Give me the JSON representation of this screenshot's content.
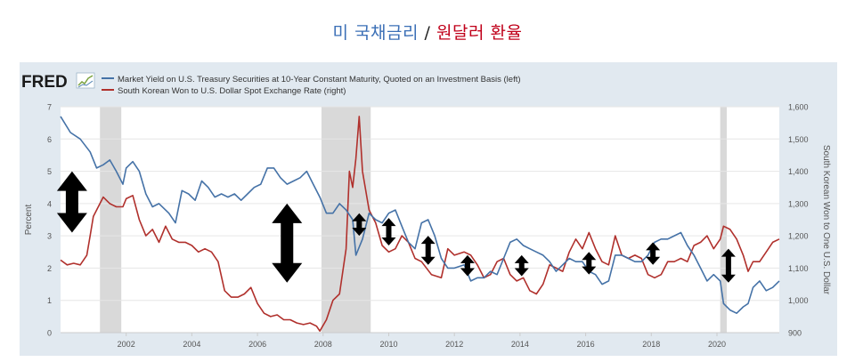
{
  "page_title": {
    "part1": "미 국채금리",
    "separator": "/",
    "part2": "원달러 환율"
  },
  "colors": {
    "title_blue": "#3b6fb6",
    "title_red": "#c0001a",
    "panel_bg": "#e1e9f0",
    "series1": "#4572a7",
    "series2": "#b0302c",
    "recession": "#d9d9d9",
    "arrow": "#000000"
  },
  "fred_logo": {
    "text": "FRED"
  },
  "legend": [
    {
      "label": "Market Yield on U.S. Treasury Securities at 10-Year Constant Maturity, Quoted on an Investment Basis (left)"
    },
    {
      "label": "South Korean Won to U.S. Dollar Spot Exchange Rate (right)"
    }
  ],
  "chart_data": {
    "type": "line",
    "left_axis": {
      "label": "Percent",
      "range": [
        0,
        7
      ],
      "ticks": [
        "0",
        "1",
        "2",
        "3",
        "4",
        "5",
        "6",
        "7"
      ]
    },
    "right_axis": {
      "label": "South Korean Won to One U.S. Dollar",
      "range": [
        900,
        1600
      ],
      "ticks": [
        "900",
        "1,000",
        "1,100",
        "1,200",
        "1,300",
        "1,400",
        "1,500",
        "1,600"
      ]
    },
    "x_axis": {
      "range": [
        2000.0,
        2021.9
      ],
      "ticks": [
        "2002",
        "2004",
        "2006",
        "2008",
        "2010",
        "2012",
        "2014",
        "2016",
        "2018",
        "2020"
      ]
    },
    "grid": "horizontal",
    "legend_position": "top-left",
    "recessions": [
      [
        2001.2,
        2001.85
      ],
      [
        2007.95,
        2009.45
      ],
      [
        2020.1,
        2020.3
      ]
    ],
    "series": [
      {
        "name": "Market Yield on U.S. Treasury Securities at 10-Year Constant Maturity, Quoted on an Investment Basis (left)",
        "axis": "left",
        "points": [
          [
            2000.0,
            6.7
          ],
          [
            2000.3,
            6.2
          ],
          [
            2000.6,
            6.0
          ],
          [
            2000.9,
            5.6
          ],
          [
            2001.1,
            5.1
          ],
          [
            2001.3,
            5.2
          ],
          [
            2001.5,
            5.35
          ],
          [
            2001.7,
            5.0
          ],
          [
            2001.9,
            4.6
          ],
          [
            2002.0,
            5.1
          ],
          [
            2002.2,
            5.3
          ],
          [
            2002.4,
            5.0
          ],
          [
            2002.6,
            4.3
          ],
          [
            2002.8,
            3.9
          ],
          [
            2003.0,
            4.0
          ],
          [
            2003.3,
            3.7
          ],
          [
            2003.5,
            3.4
          ],
          [
            2003.7,
            4.4
          ],
          [
            2003.9,
            4.3
          ],
          [
            2004.1,
            4.1
          ],
          [
            2004.3,
            4.7
          ],
          [
            2004.5,
            4.5
          ],
          [
            2004.7,
            4.2
          ],
          [
            2004.9,
            4.3
          ],
          [
            2005.1,
            4.2
          ],
          [
            2005.3,
            4.3
          ],
          [
            2005.5,
            4.1
          ],
          [
            2005.7,
            4.3
          ],
          [
            2005.9,
            4.5
          ],
          [
            2006.1,
            4.6
          ],
          [
            2006.3,
            5.1
          ],
          [
            2006.5,
            5.1
          ],
          [
            2006.7,
            4.8
          ],
          [
            2006.9,
            4.6
          ],
          [
            2007.1,
            4.7
          ],
          [
            2007.3,
            4.8
          ],
          [
            2007.5,
            5.0
          ],
          [
            2007.7,
            4.6
          ],
          [
            2007.9,
            4.2
          ],
          [
            2008.1,
            3.7
          ],
          [
            2008.3,
            3.7
          ],
          [
            2008.5,
            4.0
          ],
          [
            2008.7,
            3.8
          ],
          [
            2008.9,
            3.5
          ],
          [
            2009.0,
            2.4
          ],
          [
            2009.2,
            2.9
          ],
          [
            2009.4,
            3.7
          ],
          [
            2009.6,
            3.5
          ],
          [
            2009.8,
            3.4
          ],
          [
            2010.0,
            3.7
          ],
          [
            2010.2,
            3.8
          ],
          [
            2010.4,
            3.3
          ],
          [
            2010.6,
            2.8
          ],
          [
            2010.8,
            2.6
          ],
          [
            2011.0,
            3.4
          ],
          [
            2011.2,
            3.5
          ],
          [
            2011.4,
            3.0
          ],
          [
            2011.6,
            2.3
          ],
          [
            2011.8,
            2.0
          ],
          [
            2012.0,
            2.0
          ],
          [
            2012.3,
            2.1
          ],
          [
            2012.5,
            1.6
          ],
          [
            2012.7,
            1.7
          ],
          [
            2012.9,
            1.7
          ],
          [
            2013.1,
            1.9
          ],
          [
            2013.3,
            1.8
          ],
          [
            2013.5,
            2.3
          ],
          [
            2013.7,
            2.8
          ],
          [
            2013.9,
            2.9
          ],
          [
            2014.1,
            2.7
          ],
          [
            2014.3,
            2.6
          ],
          [
            2014.5,
            2.5
          ],
          [
            2014.7,
            2.4
          ],
          [
            2014.9,
            2.2
          ],
          [
            2015.1,
            1.9
          ],
          [
            2015.3,
            2.1
          ],
          [
            2015.5,
            2.3
          ],
          [
            2015.7,
            2.2
          ],
          [
            2015.9,
            2.2
          ],
          [
            2016.1,
            1.9
          ],
          [
            2016.3,
            1.8
          ],
          [
            2016.5,
            1.5
          ],
          [
            2016.7,
            1.6
          ],
          [
            2016.9,
            2.4
          ],
          [
            2017.1,
            2.4
          ],
          [
            2017.3,
            2.3
          ],
          [
            2017.5,
            2.2
          ],
          [
            2017.7,
            2.2
          ],
          [
            2017.9,
            2.4
          ],
          [
            2018.1,
            2.8
          ],
          [
            2018.3,
            2.9
          ],
          [
            2018.5,
            2.9
          ],
          [
            2018.7,
            3.0
          ],
          [
            2018.9,
            3.1
          ],
          [
            2019.1,
            2.7
          ],
          [
            2019.3,
            2.4
          ],
          [
            2019.5,
            2.0
          ],
          [
            2019.7,
            1.6
          ],
          [
            2019.9,
            1.8
          ],
          [
            2020.1,
            1.6
          ],
          [
            2020.2,
            0.9
          ],
          [
            2020.4,
            0.7
          ],
          [
            2020.6,
            0.6
          ],
          [
            2020.8,
            0.8
          ],
          [
            2020.95,
            0.9
          ],
          [
            2021.1,
            1.4
          ],
          [
            2021.3,
            1.6
          ],
          [
            2021.5,
            1.3
          ],
          [
            2021.7,
            1.4
          ],
          [
            2021.9,
            1.6
          ]
        ]
      },
      {
        "name": "South Korean Won to U.S. Dollar Spot Exchange Rate (right)",
        "axis": "right",
        "points": [
          [
            2000.0,
            1125
          ],
          [
            2000.2,
            1110
          ],
          [
            2000.4,
            1115
          ],
          [
            2000.6,
            1110
          ],
          [
            2000.8,
            1140
          ],
          [
            2000.9,
            1200
          ],
          [
            2001.0,
            1260
          ],
          [
            2001.2,
            1300
          ],
          [
            2001.3,
            1320
          ],
          [
            2001.5,
            1300
          ],
          [
            2001.7,
            1290
          ],
          [
            2001.9,
            1290
          ],
          [
            2002.0,
            1315
          ],
          [
            2002.2,
            1325
          ],
          [
            2002.4,
            1250
          ],
          [
            2002.6,
            1200
          ],
          [
            2002.8,
            1220
          ],
          [
            2003.0,
            1180
          ],
          [
            2003.2,
            1230
          ],
          [
            2003.4,
            1190
          ],
          [
            2003.6,
            1180
          ],
          [
            2003.8,
            1180
          ],
          [
            2004.0,
            1170
          ],
          [
            2004.2,
            1150
          ],
          [
            2004.4,
            1160
          ],
          [
            2004.6,
            1150
          ],
          [
            2004.8,
            1120
          ],
          [
            2005.0,
            1030
          ],
          [
            2005.2,
            1010
          ],
          [
            2005.4,
            1010
          ],
          [
            2005.6,
            1020
          ],
          [
            2005.8,
            1040
          ],
          [
            2006.0,
            990
          ],
          [
            2006.2,
            960
          ],
          [
            2006.4,
            950
          ],
          [
            2006.6,
            955
          ],
          [
            2006.8,
            940
          ],
          [
            2007.0,
            940
          ],
          [
            2007.2,
            930
          ],
          [
            2007.4,
            925
          ],
          [
            2007.6,
            930
          ],
          [
            2007.8,
            920
          ],
          [
            2007.9,
            905
          ],
          [
            2008.1,
            940
          ],
          [
            2008.3,
            1000
          ],
          [
            2008.5,
            1020
          ],
          [
            2008.7,
            1160
          ],
          [
            2008.8,
            1400
          ],
          [
            2008.9,
            1350
          ],
          [
            2009.0,
            1440
          ],
          [
            2009.1,
            1570
          ],
          [
            2009.2,
            1400
          ],
          [
            2009.4,
            1280
          ],
          [
            2009.6,
            1240
          ],
          [
            2009.8,
            1170
          ],
          [
            2010.0,
            1150
          ],
          [
            2010.2,
            1160
          ],
          [
            2010.4,
            1200
          ],
          [
            2010.6,
            1180
          ],
          [
            2010.8,
            1130
          ],
          [
            2011.0,
            1120
          ],
          [
            2011.3,
            1080
          ],
          [
            2011.6,
            1070
          ],
          [
            2011.8,
            1160
          ],
          [
            2012.0,
            1140
          ],
          [
            2012.3,
            1150
          ],
          [
            2012.5,
            1140
          ],
          [
            2012.7,
            1110
          ],
          [
            2012.9,
            1070
          ],
          [
            2013.1,
            1080
          ],
          [
            2013.3,
            1120
          ],
          [
            2013.5,
            1130
          ],
          [
            2013.7,
            1080
          ],
          [
            2013.9,
            1060
          ],
          [
            2014.1,
            1070
          ],
          [
            2014.3,
            1030
          ],
          [
            2014.5,
            1020
          ],
          [
            2014.7,
            1050
          ],
          [
            2014.9,
            1110
          ],
          [
            2015.1,
            1100
          ],
          [
            2015.3,
            1090
          ],
          [
            2015.5,
            1150
          ],
          [
            2015.7,
            1190
          ],
          [
            2015.9,
            1160
          ],
          [
            2016.1,
            1210
          ],
          [
            2016.3,
            1160
          ],
          [
            2016.5,
            1120
          ],
          [
            2016.7,
            1110
          ],
          [
            2016.9,
            1200
          ],
          [
            2017.1,
            1140
          ],
          [
            2017.3,
            1130
          ],
          [
            2017.5,
            1140
          ],
          [
            2017.7,
            1130
          ],
          [
            2017.9,
            1080
          ],
          [
            2018.1,
            1070
          ],
          [
            2018.3,
            1080
          ],
          [
            2018.5,
            1120
          ],
          [
            2018.7,
            1120
          ],
          [
            2018.9,
            1130
          ],
          [
            2019.1,
            1120
          ],
          [
            2019.3,
            1170
          ],
          [
            2019.5,
            1180
          ],
          [
            2019.7,
            1200
          ],
          [
            2019.9,
            1160
          ],
          [
            2020.1,
            1190
          ],
          [
            2020.2,
            1230
          ],
          [
            2020.4,
            1220
          ],
          [
            2020.6,
            1190
          ],
          [
            2020.8,
            1140
          ],
          [
            2020.95,
            1090
          ],
          [
            2021.1,
            1120
          ],
          [
            2021.3,
            1120
          ],
          [
            2021.5,
            1150
          ],
          [
            2021.7,
            1180
          ],
          [
            2021.9,
            1190
          ]
        ]
      }
    ],
    "annotations": [
      {
        "type": "double-arrow",
        "x": 2000.35,
        "y_top": 5.0,
        "y_bottom": 3.1
      },
      {
        "type": "double-arrow",
        "x": 2006.9,
        "y_top": 4.0,
        "y_bottom": 1.55
      },
      {
        "type": "double-arrow",
        "x": 2009.1,
        "y_top": 3.7,
        "y_bottom": 3.0
      },
      {
        "type": "double-arrow",
        "x": 2010.0,
        "y_top": 3.55,
        "y_bottom": 2.7
      },
      {
        "type": "double-arrow",
        "x": 2011.2,
        "y_top": 3.0,
        "y_bottom": 2.1
      },
      {
        "type": "double-arrow",
        "x": 2012.4,
        "y_top": 2.4,
        "y_bottom": 1.75
      },
      {
        "type": "double-arrow",
        "x": 2014.05,
        "y_top": 2.4,
        "y_bottom": 1.75
      },
      {
        "type": "double-arrow",
        "x": 2016.1,
        "y_top": 2.5,
        "y_bottom": 1.8
      },
      {
        "type": "double-arrow",
        "x": 2018.05,
        "y_top": 2.8,
        "y_bottom": 2.1
      },
      {
        "type": "double-arrow",
        "x": 2020.35,
        "y_top": 2.6,
        "y_bottom": 1.55
      }
    ]
  }
}
